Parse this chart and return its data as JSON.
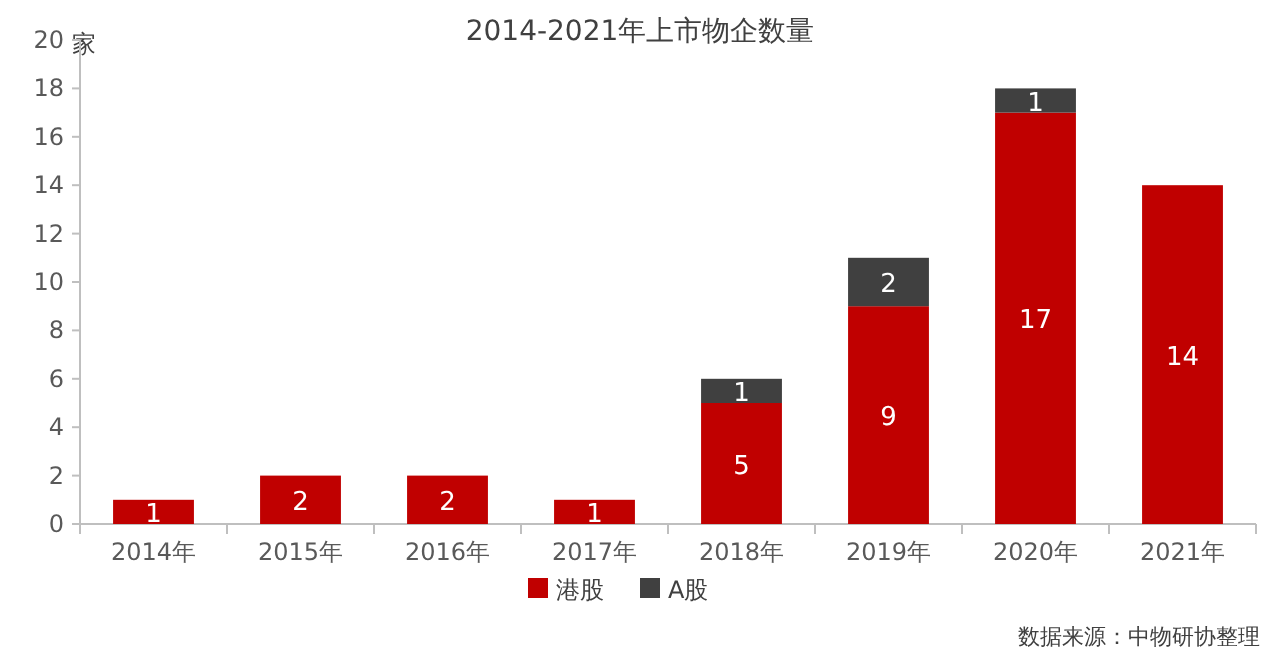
{
  "chart_data": {
    "type": "bar",
    "title": "2014-2021年上市物企数量",
    "ylabel": "家",
    "categories": [
      "2014年",
      "2015年",
      "2016年",
      "2017年",
      "2018年",
      "2019年",
      "2020年",
      "2021年"
    ],
    "series": [
      {
        "name": "港股",
        "color": "#c00000",
        "values": [
          1,
          2,
          2,
          1,
          5,
          9,
          17,
          14
        ]
      },
      {
        "name": "A股",
        "color": "#404040",
        "values": [
          null,
          null,
          null,
          null,
          1,
          2,
          1,
          null
        ]
      }
    ],
    "stacked": true,
    "data_labels": true,
    "ylim": [
      0,
      20
    ],
    "yticks": [
      0,
      2,
      4,
      6,
      8,
      10,
      12,
      14,
      16,
      18,
      20
    ],
    "legend": "bottom",
    "annotations": [
      "数据来源：中物研协整理"
    ]
  }
}
